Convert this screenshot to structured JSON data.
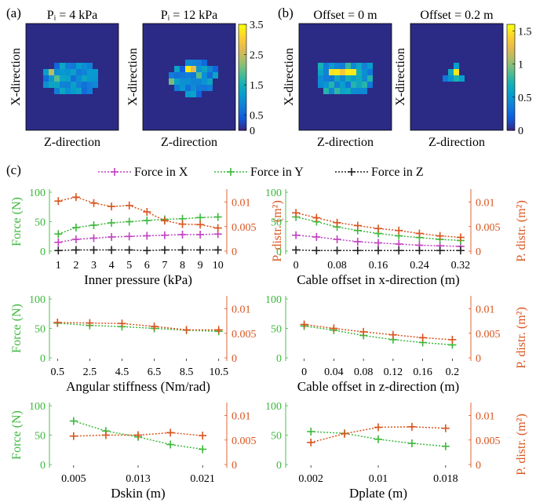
{
  "panel_labels": {
    "a": "(a)",
    "b": "(b)",
    "c": "(c)"
  },
  "colors": {
    "green": "#3cb83c",
    "orange": "#d9541e",
    "purple": "#c040c0",
    "black": "#222222",
    "heatmap_bg": "#2b2b86"
  },
  "legend": {
    "x": "Force in X",
    "y": "Force in Y",
    "z": "Force in Z"
  },
  "chart_data": [
    {
      "id": "heat-p4",
      "type": "heatmap",
      "title": "Pᵢ = 4 kPa",
      "xlabel": "Z-direction",
      "ylabel": "X-direction",
      "colorbar": {
        "ticks": [
          "3.5",
          "2.5",
          "1.5",
          "0.5",
          "0"
        ],
        "max": 3.5
      },
      "note": "sparse grid of low/moderate pressure cells in central band"
    },
    {
      "id": "heat-p12",
      "type": "heatmap",
      "title": "Pᵢ = 12 kPa",
      "xlabel": "Z-direction",
      "ylabel": "X-direction"
    },
    {
      "id": "heat-off0",
      "type": "heatmap",
      "title": "Offset = 0 m",
      "xlabel": "Z-direction",
      "ylabel": "X-direction",
      "colorbar": {
        "ticks": [
          "1.5",
          "1",
          "0.5",
          "0"
        ],
        "max": 1.6
      }
    },
    {
      "id": "heat-off02",
      "type": "heatmap",
      "title": "Offset = 0.2 m",
      "xlabel": "Z-direction",
      "ylabel": "X-direction"
    },
    {
      "id": "c1",
      "type": "line",
      "xlabel": "Inner pressure (kPa)",
      "ylabel_left": "Force (N)",
      "ylabel_right": "P. distr. (m²)",
      "x_ticks": [
        "1",
        "2",
        "3",
        "4",
        "5",
        "6",
        "7",
        "8",
        "9",
        "10"
      ],
      "x": [
        1,
        2,
        3,
        4,
        5,
        6,
        7,
        8,
        9,
        10
      ],
      "xlim": [
        0.5,
        10.5
      ],
      "ylim_left": [
        0,
        100
      ],
      "ylim_right": [
        0,
        0.012
      ],
      "left_ticks": [
        "0",
        "50",
        "100"
      ],
      "right_ticks": [
        "0",
        "0.005",
        "0.01"
      ],
      "series_left": [
        {
          "name": "Force in X",
          "color": "purple",
          "values": [
            15,
            20,
            22,
            24,
            25,
            26,
            27,
            28,
            28,
            29
          ]
        },
        {
          "name": "Force in Y",
          "color": "green",
          "values": [
            29,
            40,
            44,
            48,
            50,
            52,
            54,
            55,
            57,
            58
          ]
        },
        {
          "name": "Force in Z",
          "color": "black",
          "values": [
            1,
            2,
            2,
            2,
            2,
            1,
            2,
            2,
            2,
            2
          ]
        }
      ],
      "series_right": [
        {
          "color": "orange",
          "values": [
            0.0102,
            0.011,
            0.0098,
            0.0091,
            0.0093,
            0.008,
            0.0062,
            0.0055,
            0.0054,
            0.0047
          ]
        }
      ]
    },
    {
      "id": "c2",
      "type": "line",
      "xlabel": "Cable offset in x-direction (m)",
      "ylabel_right": "P. distr. (m²)",
      "x_ticks": [
        "0",
        "0.08",
        "0.16",
        "0.24",
        "0.32"
      ],
      "x_tick_values": [
        0,
        0.08,
        0.16,
        0.24,
        0.32
      ],
      "x": [
        0,
        0.04,
        0.08,
        0.12,
        0.16,
        0.2,
        0.24,
        0.28,
        0.32
      ],
      "xlim": [
        -0.02,
        0.34
      ],
      "ylim_left": [
        0,
        100
      ],
      "ylim_right": [
        0,
        0.012
      ],
      "left_ticks": [
        "0",
        "50",
        "100"
      ],
      "right_ticks": [
        "0",
        "0.005",
        "0.01"
      ],
      "series_left": [
        {
          "name": "Force in X",
          "color": "purple",
          "values": [
            27,
            24,
            20,
            16,
            14,
            12,
            10,
            9,
            8
          ]
        },
        {
          "name": "Force in Y",
          "color": "green",
          "values": [
            58,
            50,
            41,
            35,
            30,
            26,
            23,
            20,
            18
          ]
        },
        {
          "name": "Force in Z",
          "color": "black",
          "values": [
            2,
            1,
            1,
            1,
            1,
            1,
            1,
            1,
            1
          ]
        }
      ],
      "series_right": [
        {
          "color": "orange",
          "values": [
            0.0078,
            0.0068,
            0.0058,
            0.0052,
            0.0046,
            0.0042,
            0.0036,
            0.0031,
            0.0028
          ]
        }
      ]
    },
    {
      "id": "c3",
      "type": "line",
      "xlabel": "Angular stiffness (Nm/rad)",
      "ylabel_left": "Force (N)",
      "x_ticks": [
        "0.5",
        "2.5",
        "4.5",
        "6.5",
        "8.5",
        "10.5"
      ],
      "x": [
        0.5,
        2.5,
        4.5,
        6.5,
        8.5,
        10.5
      ],
      "xlim": [
        0,
        11
      ],
      "ylim_left": [
        0,
        100
      ],
      "ylim_right": [
        0,
        0.012
      ],
      "left_ticks": [
        "0",
        "50",
        "100"
      ],
      "right_ticks": [
        "0",
        "0.005",
        "0.01"
      ],
      "series_left": [
        {
          "name": "Force in Y",
          "color": "green",
          "values": [
            59,
            55,
            53,
            50,
            47,
            45
          ]
        }
      ],
      "series_right": [
        {
          "color": "orange",
          "values": [
            0.0072,
            0.0071,
            0.007,
            0.0064,
            0.0057,
            0.0057
          ]
        }
      ]
    },
    {
      "id": "c4",
      "type": "line",
      "xlabel": "Cable offset in z-direction (m)",
      "ylabel_right": "P. distr. (m²)",
      "x_ticks": [
        "0",
        "0.04",
        "0.08",
        "0.12",
        "0.16",
        "0.2"
      ],
      "x": [
        0,
        0.04,
        0.08,
        0.12,
        0.16,
        0.2
      ],
      "xlim": [
        -0.025,
        0.225
      ],
      "ylim_left": [
        0,
        100
      ],
      "ylim_right": [
        0,
        0.012
      ],
      "left_ticks": [
        "0",
        "50",
        "100"
      ],
      "right_ticks": [
        "0",
        "0.005",
        "0.01"
      ],
      "series_left": [
        {
          "name": "Force in Y",
          "color": "green",
          "values": [
            54,
            47,
            38,
            31,
            26,
            22
          ]
        }
      ],
      "series_right": [
        {
          "color": "orange",
          "values": [
            0.0068,
            0.006,
            0.0053,
            0.0047,
            0.0041,
            0.0037
          ]
        }
      ]
    },
    {
      "id": "c5",
      "type": "line",
      "xlabel": "Dskin (m)",
      "ylabel_left": "Force (N)",
      "x_ticks": [
        "0.005",
        "0.013",
        "0.021"
      ],
      "x_tick_values": [
        0.005,
        0.013,
        0.021
      ],
      "x": [
        0.005,
        0.009,
        0.013,
        0.017,
        0.021
      ],
      "xlim": [
        0.002,
        0.024
      ],
      "ylim_left": [
        0,
        100
      ],
      "ylim_right": [
        0,
        0.012
      ],
      "left_ticks": [
        "0",
        "50",
        "100"
      ],
      "right_ticks": [
        "0",
        "0.005",
        "0.01"
      ],
      "series_left": [
        {
          "name": "Force in Y",
          "color": "green",
          "values": [
            74,
            57,
            47,
            34,
            26
          ]
        }
      ],
      "series_right": [
        {
          "color": "orange",
          "values": [
            0.0058,
            0.006,
            0.006,
            0.0065,
            0.0059
          ]
        }
      ]
    },
    {
      "id": "c6",
      "type": "line",
      "xlabel": "Dplate (m)",
      "ylabel_right": "P. distr. (m²)",
      "x_ticks": [
        "0.002",
        "0.01",
        "0.018"
      ],
      "x_tick_values": [
        0.002,
        0.01,
        0.018
      ],
      "x": [
        0.002,
        0.006,
        0.01,
        0.014,
        0.018
      ],
      "xlim": [
        -0.001,
        0.021
      ],
      "ylim_left": [
        0,
        100
      ],
      "ylim_right": [
        0,
        0.012
      ],
      "left_ticks": [
        "0",
        "50",
        "100"
      ],
      "right_ticks": [
        "0",
        "0.005",
        "0.01"
      ],
      "series_left": [
        {
          "name": "Force in Y",
          "color": "green",
          "values": [
            56,
            53,
            43,
            36,
            31
          ]
        }
      ],
      "series_right": [
        {
          "color": "orange",
          "values": [
            0.0045,
            0.0063,
            0.0076,
            0.0077,
            0.0074
          ]
        }
      ]
    }
  ]
}
